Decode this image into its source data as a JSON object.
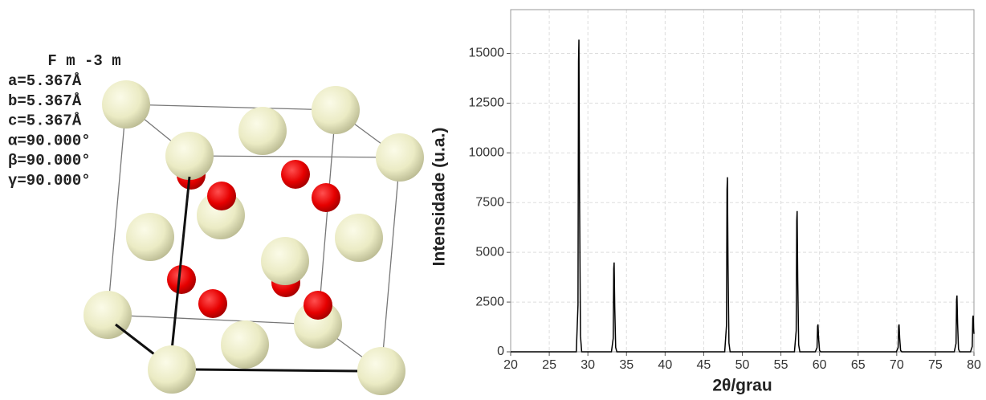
{
  "structure": {
    "space_group": "F m -3 m",
    "parameters": [
      "a=5.367Å",
      "b=5.367Å",
      "c=5.367Å",
      "α=90.000°",
      "β=90.000°",
      "γ=90.000°"
    ]
  },
  "chart_data": {
    "type": "line",
    "xlabel": "2θ/grau",
    "ylabel": "Intensidade (u.a.)",
    "color": "#000000",
    "grid": true,
    "xlim": [
      20,
      80
    ],
    "ylim": [
      0,
      17200
    ],
    "xticks": [
      20,
      25,
      30,
      35,
      40,
      45,
      50,
      55,
      60,
      65,
      70,
      75,
      80
    ],
    "yticks": [
      0,
      2500,
      5000,
      7500,
      10000,
      12500,
      15000
    ],
    "x": [
      20,
      28.5,
      28.72,
      28.79,
      28.84,
      28.92,
      29.04,
      29.2,
      33.05,
      33.28,
      33.35,
      33.4,
      33.48,
      33.6,
      33.75,
      47.72,
      47.95,
      48.02,
      48.07,
      48.15,
      48.27,
      48.42,
      56.75,
      56.98,
      57.05,
      57.1,
      57.18,
      57.3,
      57.45,
      59.45,
      59.68,
      59.75,
      59.8,
      59.88,
      60,
      60.15,
      69.95,
      70.18,
      70.25,
      70.3,
      70.38,
      70.5,
      70.65,
      77.45,
      77.68,
      77.75,
      77.8,
      77.88,
      78,
      78.15,
      79.55,
      79.78,
      79.85,
      79.9,
      79.95,
      80
    ],
    "values": [
      0,
      0,
      2350,
      14600,
      15690,
      7800,
      800,
      0,
      0,
      670,
      4180,
      4490,
      2250,
      220,
      0,
      0,
      1320,
      8160,
      8775,
      4390,
      440,
      0,
      0,
      1060,
      6580,
      7076,
      3540,
      350,
      0,
      0,
      210,
      1280,
      1375,
      690,
      70,
      0,
      0,
      210,
      1280,
      1375,
      690,
      70,
      0,
      0,
      420,
      2630,
      2830,
      1420,
      140,
      0,
      0,
      270,
      1690,
      1820,
      1200,
      900
    ]
  }
}
